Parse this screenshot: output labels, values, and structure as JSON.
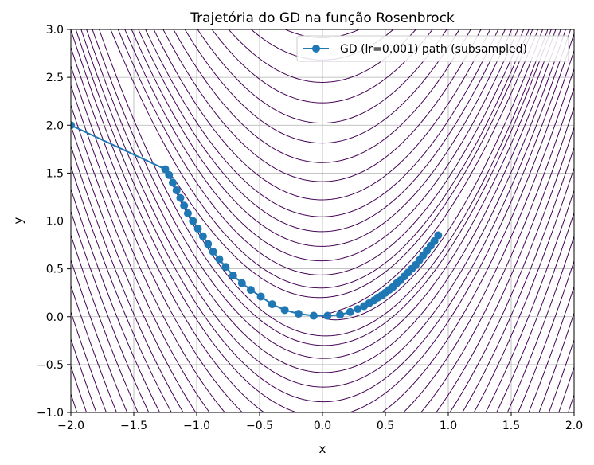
{
  "chart_data": {
    "type": "line",
    "title": "Trajetória do GD na função Rosenbrock",
    "xlabel": "x",
    "ylabel": "y",
    "xlim": [
      -2.0,
      2.0
    ],
    "ylim": [
      -1.0,
      3.0
    ],
    "xticks": [
      "−2.0",
      "−1.5",
      "−1.0",
      "−0.5",
      "0.0",
      "0.5",
      "1.0",
      "1.5",
      "2.0"
    ],
    "xtick_values": [
      -2.0,
      -1.5,
      -1.0,
      -0.5,
      0.0,
      0.5,
      1.0,
      1.5,
      2.0
    ],
    "yticks": [
      "−1.0",
      "−0.5",
      "0.0",
      "0.5",
      "1.0",
      "1.5",
      "2.0",
      "2.5",
      "3.0"
    ],
    "ytick_values": [
      -1.0,
      -0.5,
      0.0,
      0.5,
      1.0,
      1.5,
      2.0,
      2.5,
      3.0
    ],
    "grid": true,
    "legend": {
      "position": "upper-right",
      "entries": [
        "GD (lr=0.001) path (subsampled)"
      ]
    },
    "contour": {
      "function": "rosenbrock",
      "levels": [
        1,
        5,
        10,
        20,
        35,
        55,
        80,
        110,
        150,
        200,
        260,
        330,
        410,
        500,
        600,
        720,
        850,
        1000,
        1170,
        1360,
        1570,
        1800,
        2050,
        2320
      ],
      "color": "#440154"
    },
    "series": [
      {
        "name": "GD (lr=0.001) path (subsampled)",
        "color": "#1f77b4",
        "x": [
          -2.0,
          -1.25,
          -1.22,
          -1.19,
          -1.16,
          -1.13,
          -1.1,
          -1.07,
          -1.03,
          -0.99,
          -0.95,
          -0.91,
          -0.87,
          -0.82,
          -0.77,
          -0.71,
          -0.64,
          -0.57,
          -0.49,
          -0.4,
          -0.3,
          -0.19,
          -0.07,
          0.04,
          0.14,
          0.22,
          0.28,
          0.33,
          0.37,
          0.41,
          0.44,
          0.47,
          0.5,
          0.53,
          0.56,
          0.59,
          0.62,
          0.65,
          0.68,
          0.71,
          0.74,
          0.77,
          0.8,
          0.83,
          0.86,
          0.89,
          0.92
        ],
        "y": [
          2.0,
          1.54,
          1.48,
          1.4,
          1.32,
          1.24,
          1.16,
          1.08,
          1.0,
          0.92,
          0.84,
          0.76,
          0.68,
          0.6,
          0.52,
          0.43,
          0.35,
          0.28,
          0.21,
          0.13,
          0.07,
          0.03,
          0.01,
          0.01,
          0.02,
          0.05,
          0.08,
          0.11,
          0.14,
          0.17,
          0.2,
          0.22,
          0.25,
          0.28,
          0.31,
          0.35,
          0.38,
          0.42,
          0.46,
          0.5,
          0.54,
          0.59,
          0.64,
          0.69,
          0.74,
          0.79,
          0.85
        ]
      }
    ]
  }
}
